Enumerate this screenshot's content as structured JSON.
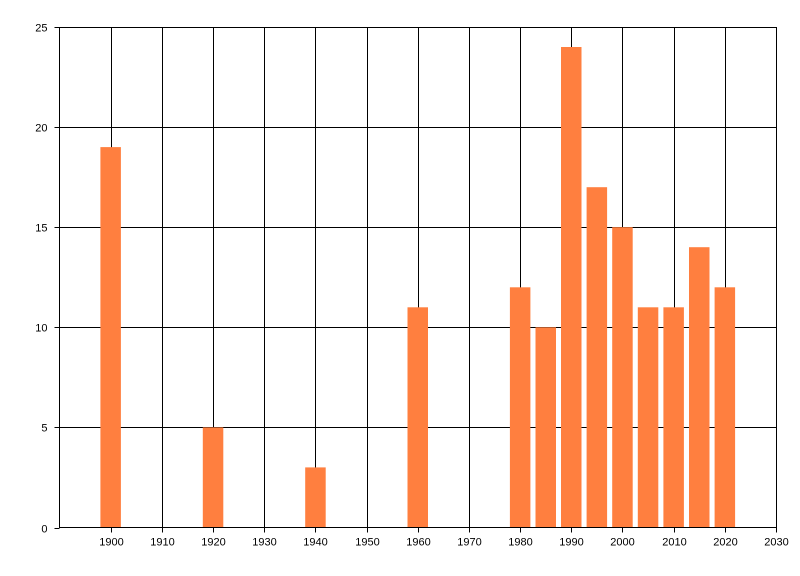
{
  "chart_data": {
    "type": "bar",
    "title": "",
    "xlabel": "",
    "ylabel": "",
    "x": [
      1900,
      1920,
      1940,
      1960,
      1980,
      1985,
      1990,
      1995,
      2000,
      2005,
      2010,
      2015,
      2020
    ],
    "values": [
      19,
      5,
      3,
      11,
      12,
      10,
      24,
      17,
      15,
      11,
      11,
      14,
      12
    ],
    "xlim": [
      1890,
      2030
    ],
    "ylim": [
      0,
      25
    ],
    "x_ticks": [
      1900,
      1910,
      1920,
      1930,
      1940,
      1950,
      1960,
      1970,
      1980,
      1990,
      2000,
      2010,
      2020,
      2030
    ],
    "y_ticks": [
      0,
      5,
      10,
      15,
      20,
      25
    ],
    "bar_color": "#FF7F3F",
    "grid": true,
    "legend": "none"
  }
}
